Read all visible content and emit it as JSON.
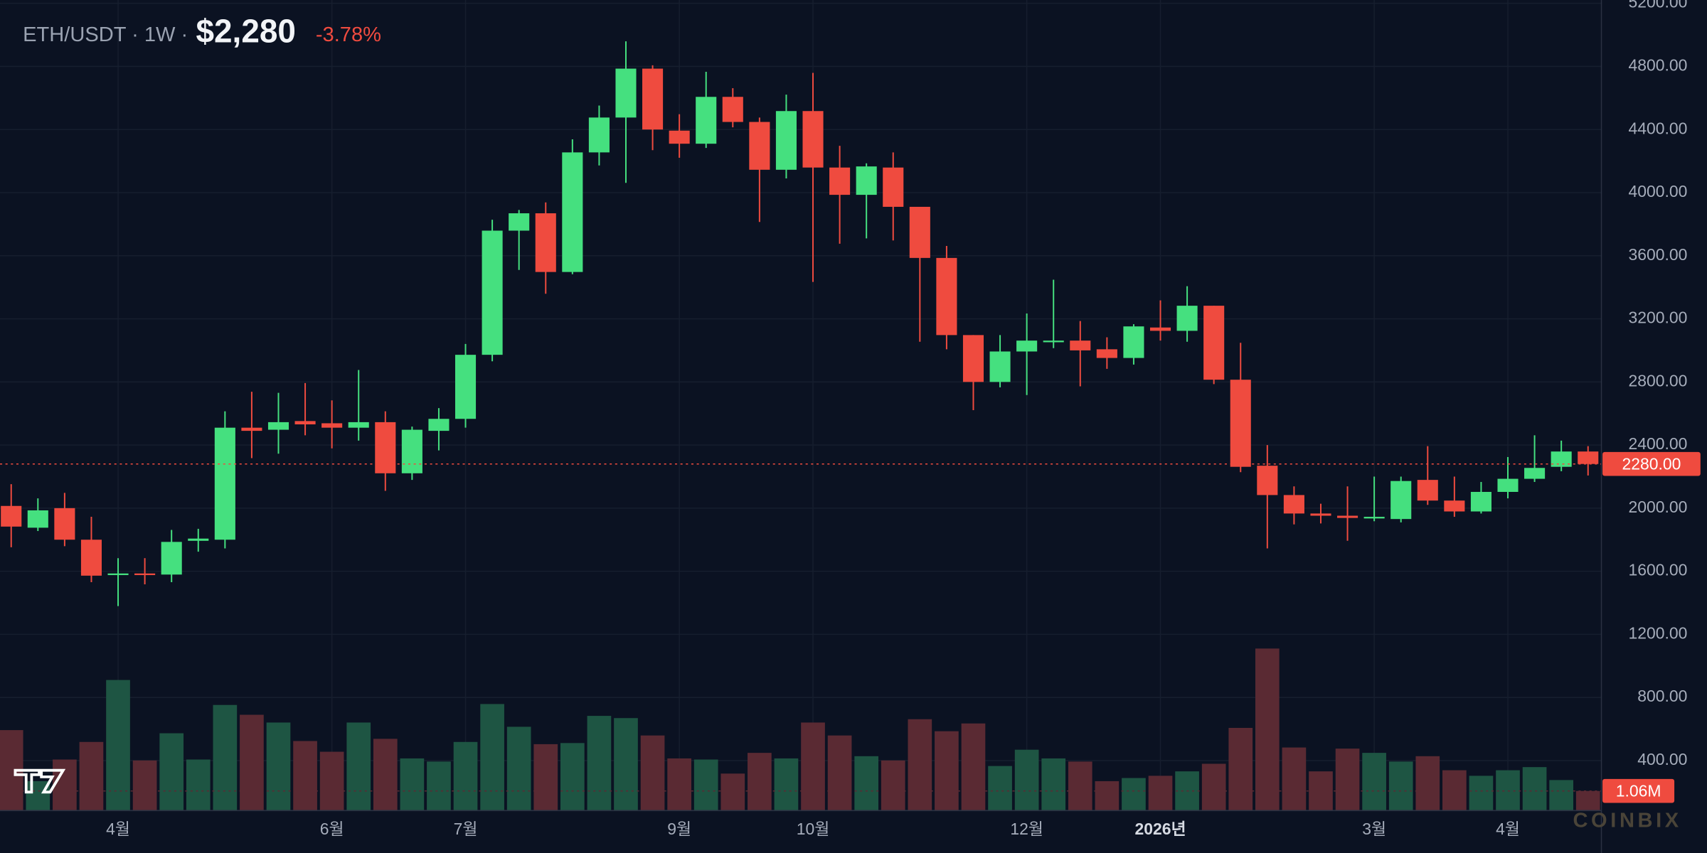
{
  "header": {
    "symbol": "ETH/USDT · 1W ·",
    "price": "$2,280",
    "change": "-3.78%"
  },
  "watermark": "COINBIX",
  "chart_data": {
    "type": "candlestick",
    "categories": [
      null,
      null,
      null,
      null,
      "4월",
      null,
      null,
      null,
      null,
      null,
      null,
      null,
      "6월",
      null,
      null,
      null,
      null,
      "7월",
      null,
      null,
      null,
      null,
      null,
      null,
      null,
      "9월",
      null,
      null,
      null,
      null,
      "10월",
      null,
      null,
      null,
      null,
      null,
      null,
      null,
      "12월",
      null,
      null,
      null,
      null,
      "2026년",
      null,
      null,
      null,
      null,
      null,
      null,
      null,
      "3월",
      null,
      null,
      null,
      null,
      "4월",
      null,
      null,
      null
    ],
    "open": [
      2014,
      1876,
      2000,
      1800,
      1579,
      1586,
      1579,
      1793,
      1800,
      2510,
      2497,
      2552,
      2538,
      2510,
      2545,
      2221,
      2490,
      2566,
      2972,
      3759,
      3869,
      3497,
      4255,
      4476,
      4786,
      4393,
      4310,
      4607,
      4448,
      4145,
      4517,
      4159,
      3986,
      4159,
      3910,
      3586,
      3097,
      2800,
      2993,
      3055,
      3062,
      3007,
      2952,
      3145,
      3124,
      3283,
      2814,
      2269,
      2083,
      1966,
      1952,
      1938,
      1931,
      2179,
      2048,
      1979,
      2103,
      2186,
      2262,
      2359
    ],
    "high": [
      2152,
      2062,
      2097,
      1945,
      1683,
      1683,
      1862,
      1869,
      2614,
      2738,
      2731,
      2793,
      2683,
      2876,
      2614,
      2517,
      2634,
      3041,
      3828,
      3890,
      3938,
      4338,
      4552,
      4959,
      4807,
      4497,
      4766,
      4662,
      4476,
      4621,
      4759,
      4297,
      4186,
      4255,
      3910,
      3662,
      3097,
      3097,
      3234,
      3448,
      3186,
      3083,
      3166,
      3317,
      3407,
      3283,
      3048,
      2400,
      2138,
      2028,
      2138,
      2200,
      2200,
      2393,
      2200,
      2166,
      2324,
      2462,
      2428,
      2393
    ],
    "low": [
      1752,
      1855,
      1759,
      1531,
      1379,
      1517,
      1531,
      1724,
      1745,
      2317,
      2345,
      2462,
      2379,
      2428,
      2110,
      2179,
      2366,
      2510,
      2931,
      3510,
      3359,
      3483,
      4172,
      4062,
      4269,
      4221,
      4283,
      4414,
      3814,
      4090,
      3434,
      3676,
      3710,
      3697,
      3055,
      3007,
      2621,
      2766,
      2717,
      3014,
      2772,
      2883,
      2910,
      3062,
      3055,
      2786,
      2228,
      1745,
      1897,
      1903,
      1793,
      1917,
      1910,
      2021,
      1945,
      1966,
      2062,
      2166,
      2234,
      2207
    ],
    "close": [
      1883,
      1986,
      1800,
      1572,
      1586,
      1579,
      1786,
      1807,
      2510,
      2490,
      2545,
      2531,
      2510,
      2545,
      2221,
      2497,
      2566,
      2972,
      3759,
      3869,
      3497,
      4255,
      4476,
      4786,
      4400,
      4310,
      4607,
      4448,
      4145,
      4517,
      4159,
      3986,
      4166,
      3910,
      3586,
      3097,
      2800,
      2993,
      3062,
      3062,
      3000,
      2952,
      3152,
      3124,
      3283,
      2814,
      2262,
      2083,
      1966,
      1952,
      1938,
      1945,
      2172,
      2048,
      1979,
      2103,
      2186,
      2255,
      2359,
      2280
    ],
    "volume": {
      "values": [
        4.35,
        1.59,
        2.76,
        3.71,
        7.06,
        2.71,
        4.18,
        2.76,
        5.71,
        5.18,
        4.76,
        3.76,
        3.18,
        4.76,
        3.88,
        2.82,
        2.65,
        3.71,
        5.76,
        4.53,
        3.59,
        3.65,
        5.12,
        5.0,
        4.06,
        2.82,
        2.76,
        2.0,
        3.12,
        2.82,
        4.76,
        4.06,
        2.94,
        2.71,
        4.94,
        4.29,
        4.71,
        2.41,
        3.29,
        2.82,
        2.65,
        1.59,
        1.76,
        1.88,
        2.12,
        2.53,
        4.47,
        8.76,
        3.41,
        2.12,
        3.35,
        3.12,
        2.65,
        2.94,
        2.18,
        1.88,
        2.18,
        2.35,
        1.65,
        1.06
      ],
      "value_labels": [
        null,
        null,
        null,
        null,
        null,
        null,
        null,
        null,
        null,
        null,
        null,
        null,
        null,
        null,
        null,
        null,
        null,
        null,
        null,
        null,
        null,
        null,
        null,
        null,
        null,
        null,
        null,
        null,
        null,
        null,
        null,
        null,
        null,
        null,
        null,
        null,
        null,
        null,
        null,
        null,
        null,
        null,
        null,
        null,
        null,
        null,
        null,
        null,
        null,
        null,
        null,
        null,
        null,
        null,
        null,
        null,
        null,
        null,
        null,
        "1.06M"
      ],
      "ylim": [
        0,
        12
      ],
      "up_color": "#1e5543",
      "down_color": "#5a2a33"
    },
    "ylim": [
      83,
      5221
    ],
    "yticks": [
      {
        "value": 400,
        "label": "400.00"
      },
      {
        "value": 800,
        "label": "800.00"
      },
      {
        "value": 1200,
        "label": "1200.00"
      },
      {
        "value": 1600,
        "label": "1600.00"
      },
      {
        "value": 2000,
        "label": "2000.00"
      },
      {
        "value": 2400,
        "label": "2400.00"
      },
      {
        "value": 2800,
        "label": "2800.00"
      },
      {
        "value": 3200,
        "label": "3200.00"
      },
      {
        "value": 3600,
        "label": "3600.00"
      },
      {
        "value": 4000,
        "label": "4000.00"
      },
      {
        "value": 4400,
        "label": "4400.00"
      },
      {
        "value": 4800,
        "label": "4800.00"
      },
      {
        "value": 5200,
        "label": "5200.00"
      }
    ],
    "price_line": {
      "value": 2280,
      "label": "2280.00"
    },
    "up_color": "#45e07f",
    "down_color": "#ef4b3f",
    "grid": true
  }
}
